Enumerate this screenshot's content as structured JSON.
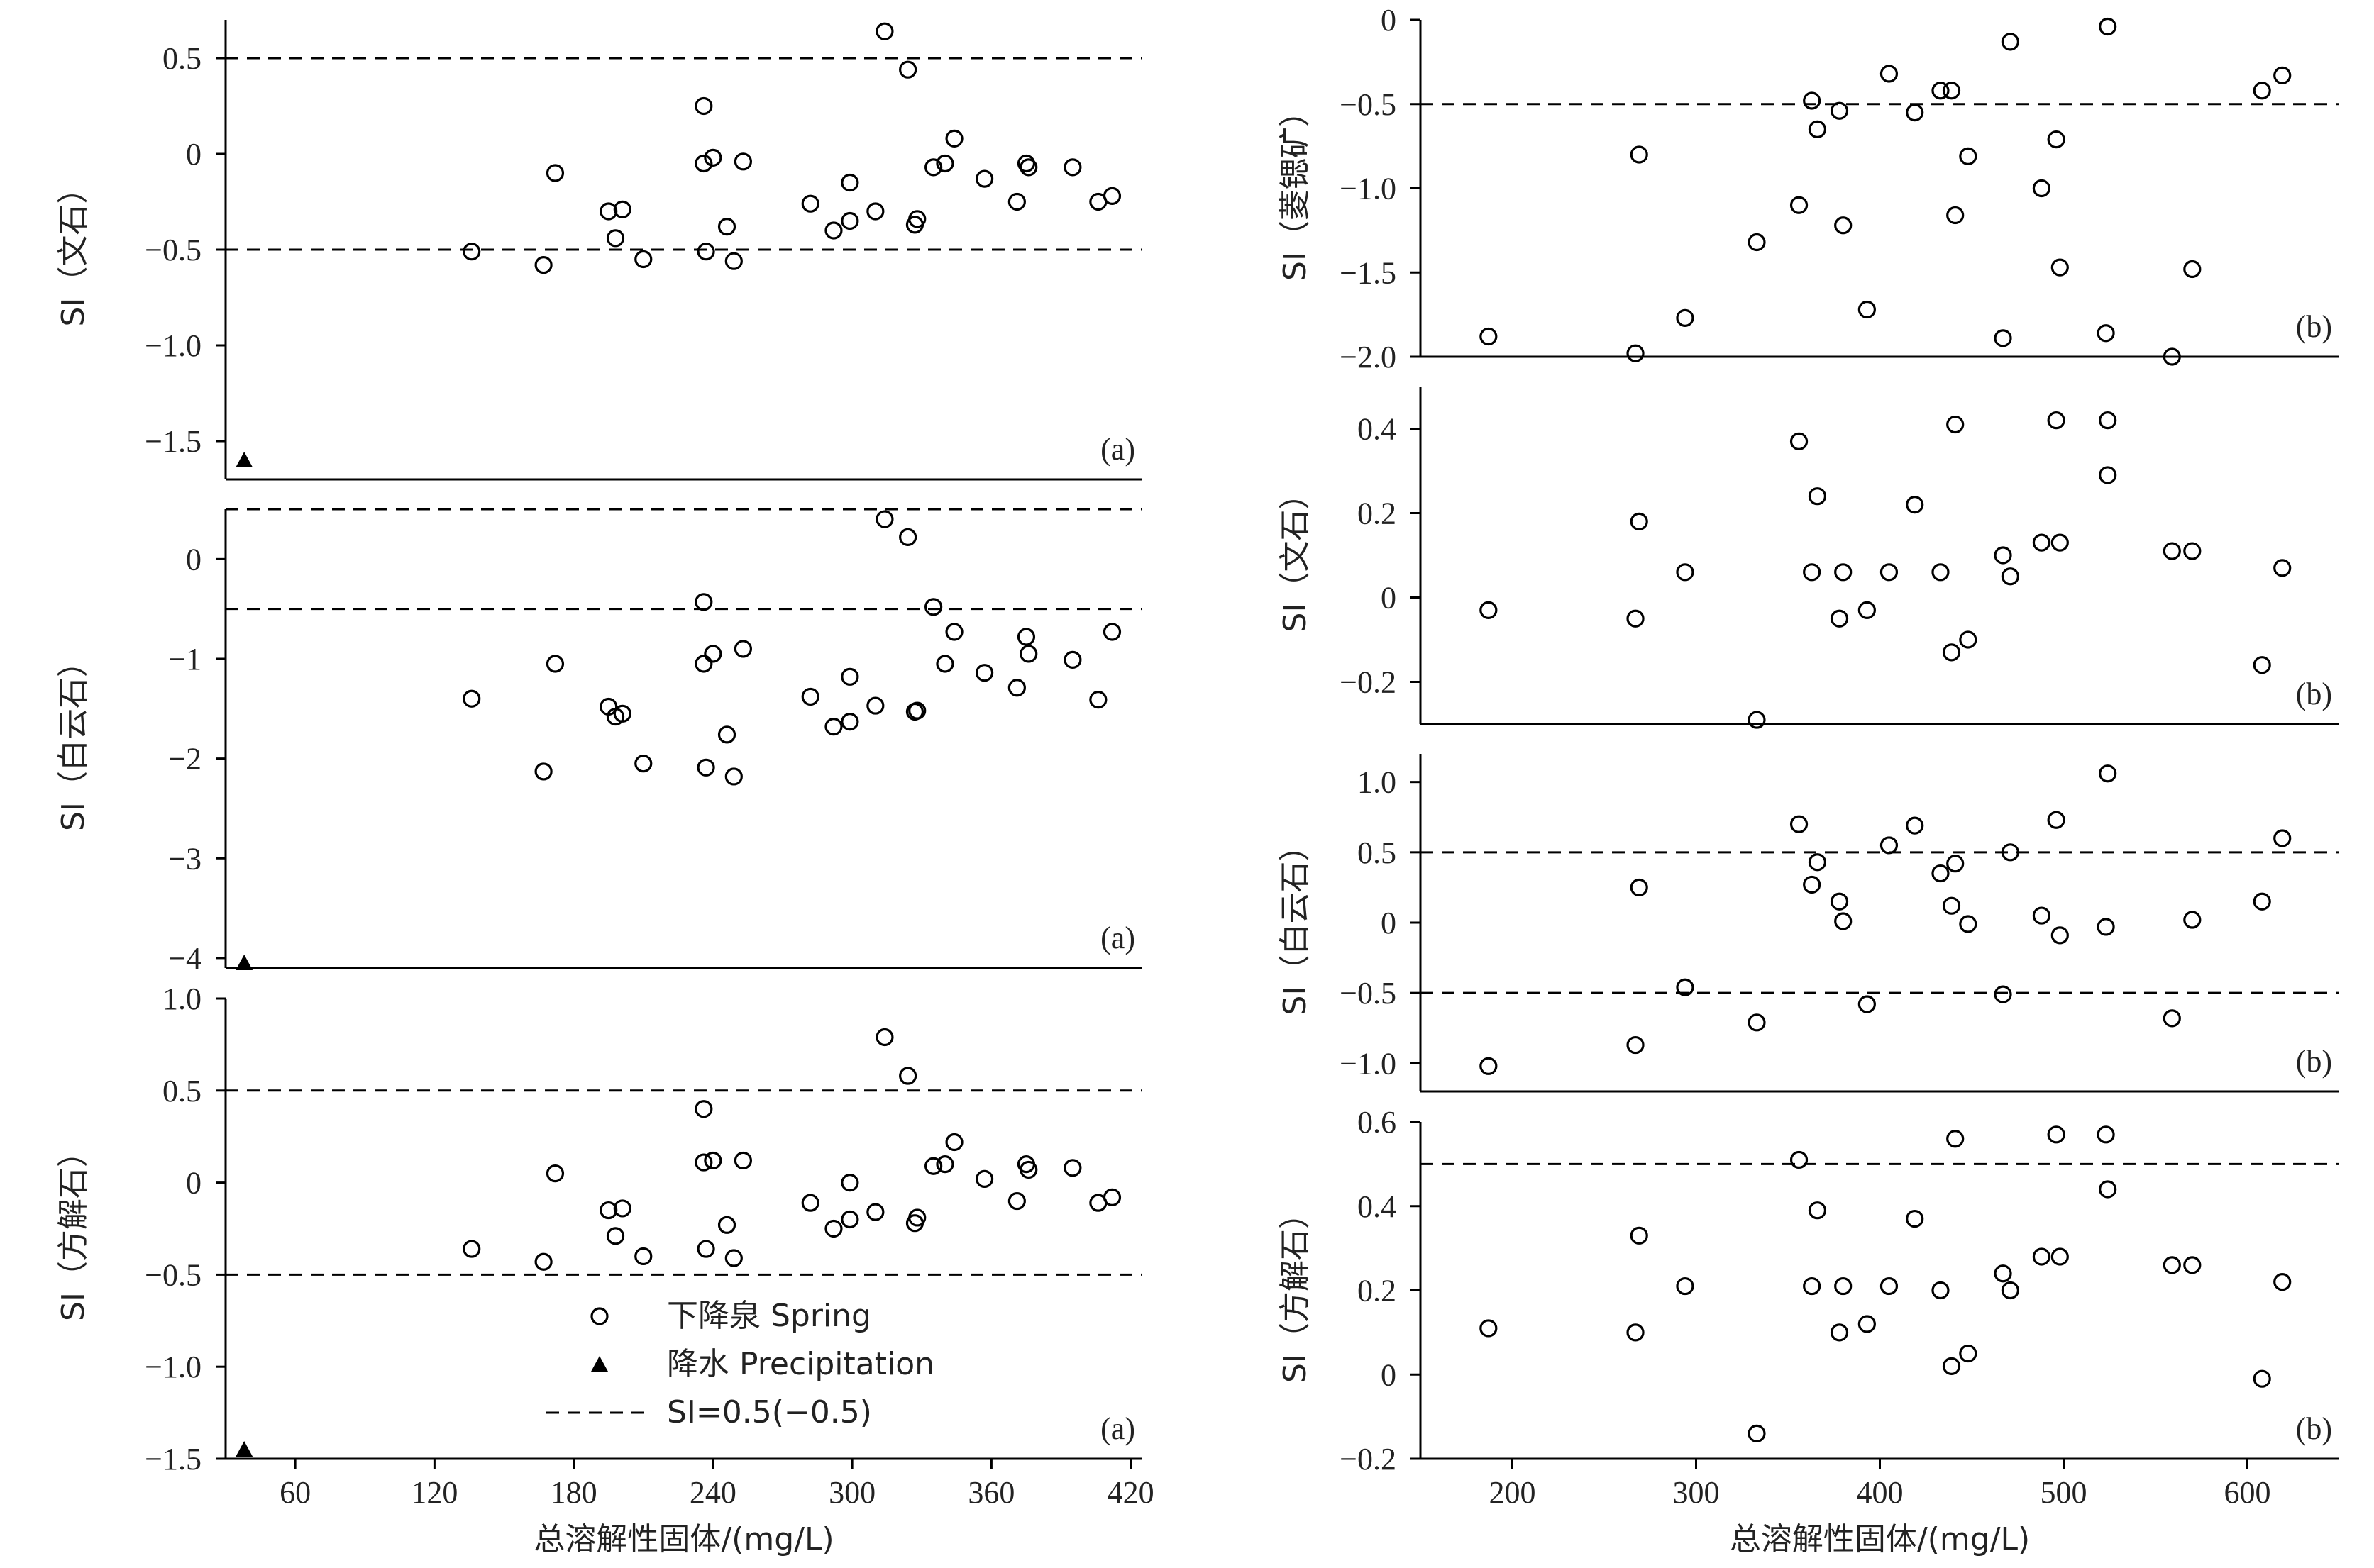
{
  "chart_data": [
    {
      "type": "scatter",
      "group": "left",
      "panel_label": "(a)",
      "ylabel": "SI（文石）",
      "ylim": [
        -1.7,
        0.7
      ],
      "xlim": [
        30,
        425
      ],
      "y_ticks": [
        0.5,
        0,
        -0.5,
        -1.0,
        -1.5
      ],
      "y_tick_labels": [
        "0.5",
        "0",
        "−0.5",
        "−1.0",
        "−1.5"
      ],
      "reference_lines": [
        0.5,
        -0.5
      ],
      "series": [
        {
          "marker": "circle",
          "points": [
            [
              136,
              -0.51
            ],
            [
              167,
              -0.58
            ],
            [
              172,
              -0.1
            ],
            [
              195,
              -0.3
            ],
            [
              198,
              -0.44
            ],
            [
              201,
              -0.29
            ],
            [
              210,
              -0.55
            ],
            [
              236,
              0.25
            ],
            [
              236,
              -0.05
            ],
            [
              237,
              -0.51
            ],
            [
              240,
              -0.02
            ],
            [
              246,
              -0.38
            ],
            [
              249,
              -0.56
            ],
            [
              253,
              -0.04
            ],
            [
              282,
              -0.26
            ],
            [
              292,
              -0.4
            ],
            [
              299,
              -0.35
            ],
            [
              299,
              -0.15
            ],
            [
              310,
              -0.3
            ],
            [
              314,
              0.64
            ],
            [
              324,
              0.44
            ],
            [
              327,
              -0.37
            ],
            [
              328,
              -0.34
            ],
            [
              335,
              -0.07
            ],
            [
              340,
              -0.05
            ],
            [
              344,
              0.08
            ],
            [
              357,
              -0.13
            ],
            [
              371,
              -0.25
            ],
            [
              375,
              -0.05
            ],
            [
              376,
              -0.07
            ],
            [
              395,
              -0.07
            ],
            [
              406,
              -0.25
            ],
            [
              412,
              -0.22
            ]
          ]
        },
        {
          "marker": "triangle",
          "points": [
            [
              38,
              -1.6
            ]
          ]
        }
      ]
    },
    {
      "type": "scatter",
      "group": "left",
      "panel_label": "(a)",
      "ylabel": "SI（白云石）",
      "ylim": [
        -4.1,
        0.5
      ],
      "xlim": [
        30,
        425
      ],
      "y_ticks": [
        0,
        -1,
        -2,
        -3,
        -4
      ],
      "y_tick_labels": [
        "0",
        "−1",
        "−2",
        "−3",
        "−4"
      ],
      "reference_lines": [
        0.5,
        -0.5
      ],
      "series": [
        {
          "marker": "circle",
          "points": [
            [
              136,
              -1.4
            ],
            [
              167,
              -2.13
            ],
            [
              172,
              -1.05
            ],
            [
              195,
              -1.48
            ],
            [
              198,
              -1.58
            ],
            [
              201,
              -1.55
            ],
            [
              210,
              -2.05
            ],
            [
              236,
              -0.43
            ],
            [
              236,
              -1.05
            ],
            [
              237,
              -2.09
            ],
            [
              240,
              -0.95
            ],
            [
              246,
              -1.76
            ],
            [
              249,
              -2.18
            ],
            [
              253,
              -0.9
            ],
            [
              282,
              -1.38
            ],
            [
              292,
              -1.68
            ],
            [
              299,
              -1.63
            ],
            [
              299,
              -1.18
            ],
            [
              310,
              -1.47
            ],
            [
              314,
              0.4
            ],
            [
              324,
              0.22
            ],
            [
              327,
              -1.53
            ],
            [
              328,
              -1.52
            ],
            [
              335,
              -0.48
            ],
            [
              340,
              -1.05
            ],
            [
              344,
              -0.73
            ],
            [
              357,
              -1.14
            ],
            [
              371,
              -1.29
            ],
            [
              375,
              -0.78
            ],
            [
              376,
              -0.95
            ],
            [
              395,
              -1.01
            ],
            [
              406,
              -1.41
            ],
            [
              412,
              -0.73
            ]
          ]
        },
        {
          "marker": "triangle",
          "points": [
            [
              38,
              -4.05
            ]
          ]
        }
      ]
    },
    {
      "type": "scatter",
      "group": "left",
      "panel_label": "(a)",
      "ylabel": "SI（方解石）",
      "ylim": [
        -1.5,
        1.0
      ],
      "xlim": [
        30,
        425
      ],
      "xlabel": "总溶解性固体/(mg/L)",
      "x_ticks": [
        60,
        120,
        180,
        240,
        300,
        360,
        420
      ],
      "y_ticks": [
        1.0,
        0.5,
        0,
        -0.5,
        -1.0,
        -1.5
      ],
      "y_tick_labels": [
        "1.0",
        "0.5",
        "0",
        "−0.5",
        "−1.0",
        "−1.5"
      ],
      "reference_lines": [
        0.5,
        -0.5
      ],
      "series": [
        {
          "marker": "circle",
          "points": [
            [
              136,
              -0.36
            ],
            [
              167,
              -0.43
            ],
            [
              172,
              0.05
            ],
            [
              195,
              -0.15
            ],
            [
              198,
              -0.29
            ],
            [
              201,
              -0.14
            ],
            [
              210,
              -0.4
            ],
            [
              236,
              0.4
            ],
            [
              236,
              0.11
            ],
            [
              237,
              -0.36
            ],
            [
              240,
              0.12
            ],
            [
              246,
              -0.23
            ],
            [
              249,
              -0.41
            ],
            [
              253,
              0.12
            ],
            [
              282,
              -0.11
            ],
            [
              292,
              -0.25
            ],
            [
              299,
              -0.2
            ],
            [
              299,
              0.0
            ],
            [
              310,
              -0.16
            ],
            [
              314,
              0.79
            ],
            [
              324,
              0.58
            ],
            [
              327,
              -0.22
            ],
            [
              328,
              -0.19
            ],
            [
              335,
              0.09
            ],
            [
              340,
              0.1
            ],
            [
              344,
              0.22
            ],
            [
              357,
              0.02
            ],
            [
              371,
              -0.1
            ],
            [
              375,
              0.1
            ],
            [
              376,
              0.07
            ],
            [
              395,
              0.08
            ],
            [
              406,
              -0.11
            ],
            [
              412,
              -0.08
            ]
          ]
        },
        {
          "marker": "triangle",
          "points": [
            [
              38,
              -1.45
            ]
          ]
        }
      ],
      "legend": {
        "placement": "bottom-center",
        "entries": [
          "下降泉 Spring",
          "降水 Precipitation",
          "SI=0.5(−0.5)"
        ]
      }
    },
    {
      "type": "scatter",
      "group": "right",
      "panel_label": "(b)",
      "ylabel": "SI（菱锶矿）",
      "ylim": [
        -2.0,
        0
      ],
      "xlim": [
        150,
        650
      ],
      "y_ticks": [
        0,
        -0.5,
        -1.0,
        -1.5,
        -2.0
      ],
      "y_tick_labels": [
        "0",
        "−0.5",
        "−1.0",
        "−1.5",
        "−2.0"
      ],
      "reference_lines": [
        -0.5
      ],
      "series": [
        {
          "marker": "circle",
          "points": [
            [
              187,
              -1.88
            ],
            [
              267,
              -1.98
            ],
            [
              269,
              -0.8
            ],
            [
              294,
              -1.77
            ],
            [
              333,
              -1.32
            ],
            [
              356,
              -1.1
            ],
            [
              363,
              -0.48
            ],
            [
              366,
              -0.65
            ],
            [
              378,
              -0.54
            ],
            [
              380,
              -1.22
            ],
            [
              393,
              -1.72
            ],
            [
              405,
              -0.32
            ],
            [
              419,
              -0.55
            ],
            [
              433,
              -0.42
            ],
            [
              439,
              -0.42
            ],
            [
              441,
              -1.16
            ],
            [
              448,
              -0.81
            ],
            [
              467,
              -1.89
            ],
            [
              471,
              -0.13
            ],
            [
              488,
              -1.0
            ],
            [
              496,
              -0.71
            ],
            [
              498,
              -1.47
            ],
            [
              523,
              -1.86
            ],
            [
              524,
              -0.04
            ],
            [
              559,
              -2.0
            ],
            [
              570,
              -1.48
            ],
            [
              608,
              -0.42
            ],
            [
              619,
              -0.33
            ]
          ]
        }
      ]
    },
    {
      "type": "scatter",
      "group": "right",
      "panel_label": "(b)",
      "ylabel": "SI（文石）",
      "ylim": [
        -0.3,
        0.5
      ],
      "xlim": [
        150,
        650
      ],
      "y_ticks": [
        0.4,
        0.2,
        0,
        -0.2
      ],
      "y_tick_labels": [
        "0.4",
        "0.2",
        "0",
        "−0.2"
      ],
      "reference_lines": [],
      "series": [
        {
          "marker": "circle",
          "points": [
            [
              187,
              -0.03
            ],
            [
              267,
              -0.05
            ],
            [
              269,
              0.18
            ],
            [
              294,
              0.06
            ],
            [
              333,
              -0.29
            ],
            [
              356,
              0.37
            ],
            [
              363,
              0.06
            ],
            [
              366,
              0.24
            ],
            [
              378,
              -0.05
            ],
            [
              380,
              0.06
            ],
            [
              393,
              -0.03
            ],
            [
              405,
              0.06
            ],
            [
              419,
              0.22
            ],
            [
              433,
              0.06
            ],
            [
              439,
              -0.13
            ],
            [
              441,
              0.41
            ],
            [
              448,
              -0.1
            ],
            [
              467,
              0.1
            ],
            [
              471,
              0.05
            ],
            [
              488,
              0.13
            ],
            [
              496,
              0.42
            ],
            [
              498,
              0.13
            ],
            [
              524,
              0.29
            ],
            [
              524,
              0.42
            ],
            [
              559,
              0.11
            ],
            [
              570,
              0.11
            ],
            [
              608,
              -0.16
            ],
            [
              619,
              0.07
            ]
          ]
        }
      ]
    },
    {
      "type": "scatter",
      "group": "right",
      "panel_label": "(b)",
      "ylabel": "SI（白云石）",
      "ylim": [
        -1.2,
        1.2
      ],
      "xlim": [
        150,
        650
      ],
      "y_ticks": [
        1.0,
        0.5,
        0,
        -0.5,
        -1.0
      ],
      "y_tick_labels": [
        "1.0",
        "0.5",
        "0",
        "−0.5",
        "−1.0"
      ],
      "reference_lines": [
        0.5,
        -0.5
      ],
      "series": [
        {
          "marker": "circle",
          "points": [
            [
              187,
              -1.02
            ],
            [
              267,
              -0.87
            ],
            [
              269,
              0.25
            ],
            [
              294,
              -0.46
            ],
            [
              333,
              -0.71
            ],
            [
              356,
              0.7
            ],
            [
              363,
              0.27
            ],
            [
              366,
              0.43
            ],
            [
              378,
              0.15
            ],
            [
              380,
              0.01
            ],
            [
              393,
              -0.58
            ],
            [
              405,
              0.55
            ],
            [
              419,
              0.69
            ],
            [
              433,
              0.35
            ],
            [
              439,
              0.12
            ],
            [
              441,
              0.42
            ],
            [
              448,
              -0.01
            ],
            [
              467,
              -0.51
            ],
            [
              471,
              0.5
            ],
            [
              488,
              0.05
            ],
            [
              496,
              0.73
            ],
            [
              498,
              -0.09
            ],
            [
              523,
              -0.03
            ],
            [
              524,
              1.06
            ],
            [
              559,
              -0.68
            ],
            [
              570,
              0.02
            ],
            [
              608,
              0.15
            ],
            [
              619,
              0.6
            ]
          ]
        }
      ]
    },
    {
      "type": "scatter",
      "group": "right",
      "panel_label": "(b)",
      "ylabel": "SI（方解石）",
      "ylim": [
        -0.2,
        0.6
      ],
      "xlim": [
        150,
        650
      ],
      "xlabel": "总溶解性固体/(mg/L)",
      "x_ticks": [
        200,
        300,
        400,
        500,
        600
      ],
      "y_ticks": [
        0.6,
        0.4,
        0.2,
        0,
        -0.2
      ],
      "y_tick_labels": [
        "0.6",
        "0.4",
        "0.2",
        "0",
        "−0.2"
      ],
      "reference_lines": [
        0.5
      ],
      "series": [
        {
          "marker": "circle",
          "points": [
            [
              187,
              0.11
            ],
            [
              267,
              0.1
            ],
            [
              269,
              0.33
            ],
            [
              294,
              0.21
            ],
            [
              333,
              -0.14
            ],
            [
              356,
              0.51
            ],
            [
              363,
              0.21
            ],
            [
              366,
              0.39
            ],
            [
              378,
              0.1
            ],
            [
              380,
              0.21
            ],
            [
              393,
              0.12
            ],
            [
              405,
              0.21
            ],
            [
              419,
              0.37
            ],
            [
              433,
              0.2
            ],
            [
              439,
              0.02
            ],
            [
              441,
              0.56
            ],
            [
              448,
              0.05
            ],
            [
              467,
              0.24
            ],
            [
              471,
              0.2
            ],
            [
              488,
              0.28
            ],
            [
              496,
              0.57
            ],
            [
              498,
              0.28
            ],
            [
              523,
              0.57
            ],
            [
              524,
              0.44
            ],
            [
              559,
              0.26
            ],
            [
              570,
              0.26
            ],
            [
              608,
              -0.01
            ],
            [
              619,
              0.22
            ]
          ]
        }
      ]
    }
  ]
}
